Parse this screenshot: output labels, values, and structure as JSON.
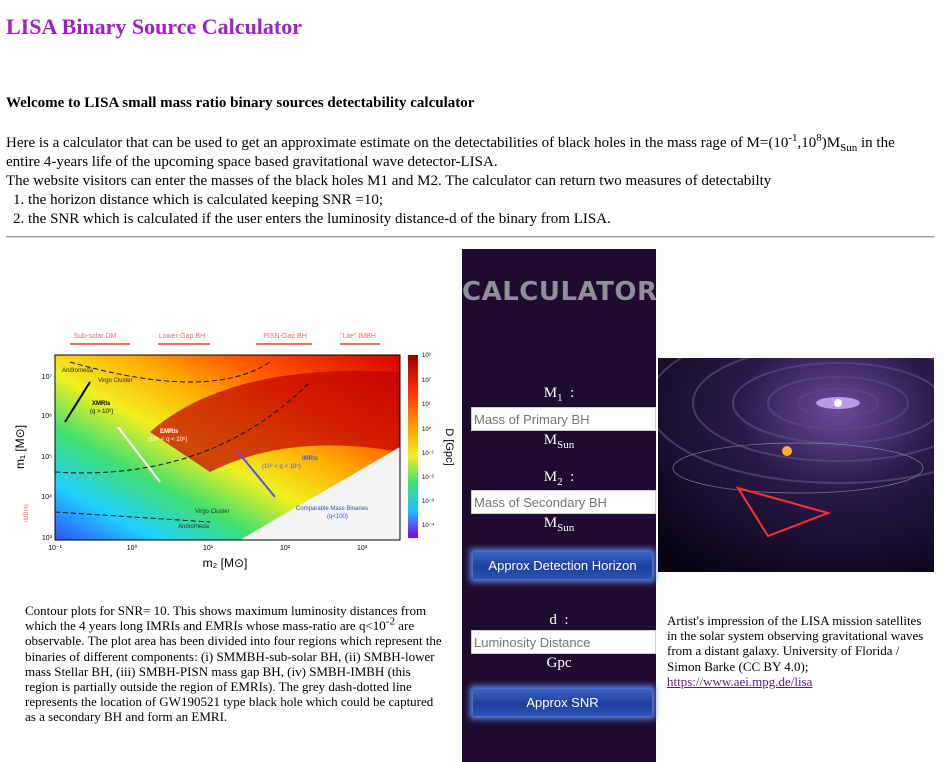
{
  "header": {
    "title": "LISA Binary Source Calculator"
  },
  "welcome": "Welcome to LISA small mass ratio binary sources detectability calculator",
  "intro": {
    "parts": [
      "Here is a calculator that can be used to get an approximate estimate on the detectabilities of black holes in the mass rage of M=(10",
      "-1",
      ",10",
      "8",
      ")M",
      "Sun",
      " in the entire 4-years life of the upcoming space based gravitational wave detector-LISA."
    ],
    "line2": "The website visitors can enter the masses of the black holes M1 and M2. The calculator can return two measures of detectabilty",
    "list": [
      "the horizon distance which is calculated keeping SNR =10;",
      "the SNR which is calculated if the user enters the luminosity distance-d of the binary from LISA."
    ]
  },
  "figure": {
    "regions": [
      "Sub-solar DM",
      "Lower-Gap BH",
      "PISN-Gap BH",
      "\"Lite\" IMBH"
    ],
    "yticks": [
      "10⁷",
      "10⁶",
      "10⁵",
      "10⁴",
      "10³"
    ],
    "xticks": [
      "10⁻¹",
      "10⁰",
      "10¹",
      "10²",
      "10³"
    ],
    "ylabel": "m₁ [M⊙]",
    "xlabel": "m₂ [M⊙]",
    "colorbar_label": "D [Gpc]",
    "colorbar_ticks": [
      "10³",
      "10²",
      "10¹",
      "10⁰",
      "10⁻¹",
      "10⁻²",
      "10⁻³",
      "10⁻⁴"
    ],
    "annotations": [
      "Andromeda",
      "Virgo Cluster",
      "XMRIs",
      "(q > 10⁶)",
      "EMRIs",
      "(10⁴ < q < 10⁶)",
      "IMRIs",
      "(10² < q < 10⁴)",
      "Comparable Mass Binaries",
      "(q<100)",
      "Virgo Cluster",
      "Andromeda",
      "IMBHs"
    ]
  },
  "figure_caption": {
    "parts": [
      "Contour plots for SNR= 10. This shows maximum luminosity distances from which the 4 years long IMRIs and EMRIs whose mass-ratio are q<10",
      "-2",
      " are observable. The plot area has been divided into four regions which represent the binaries of different components: (i) SMMBH-sub-solar BH, (ii) SMBH-lower mass Stellar BH, (iii) SMBH-PISN mass gap BH, (iv) SMBH-IMBH (this region is partially outside the region of EMRIs). The grey dash-dotted line represents the location of GW190521 type black hole which could be captured as a secondary BH and form an EMRI."
    ]
  },
  "calculator": {
    "title": "CALCULATOR",
    "m1": {
      "symbol": "M",
      "index": "1",
      "sep": ":"
    },
    "m1_placeholder": "Mass of Primary BH",
    "m1_unit": {
      "symbol": "M",
      "sub": "Sun"
    },
    "m2": {
      "symbol": "M",
      "index": "2",
      "sep": ":"
    },
    "m2_placeholder": "Mass of Secondary BH",
    "m2_unit": {
      "symbol": "M",
      "sub": "Sun"
    },
    "horizon_button": "Approx Detection Horizon",
    "d": {
      "symbol": "d",
      "sep": ":"
    },
    "d_placeholder": "Luminosity Distance",
    "d_unit": "Gpc",
    "snr_button": "Approx SNR"
  },
  "image_caption": {
    "text": "Artist's impression of the LISA mission satellites in the solar system observing gravitational waves from a distant galaxy. University of Florida / Simon Barke (CC BY 4.0);",
    "link": "https://www.aei.mpg.de/lisa"
  }
}
